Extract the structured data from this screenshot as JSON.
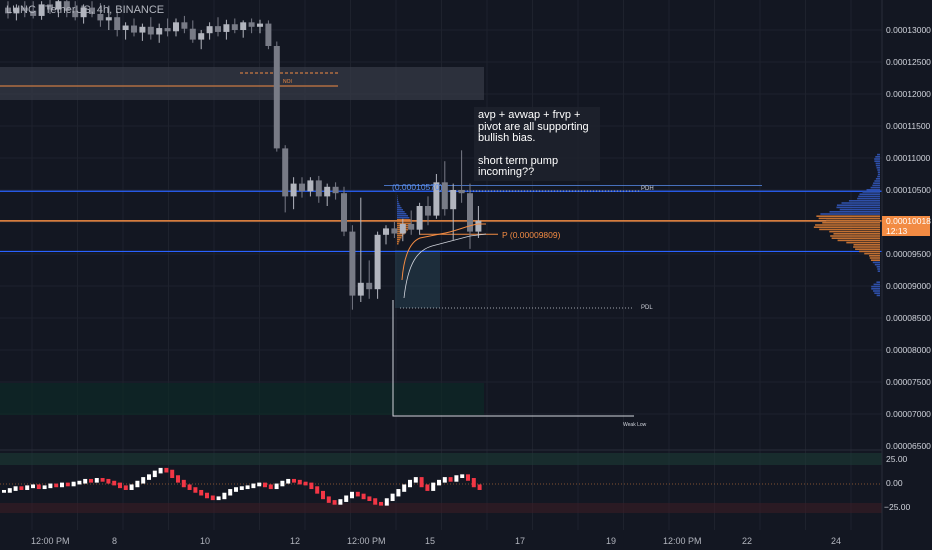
{
  "header": {
    "ticker": "LUNC / TetherUS, 4h, BINANCE"
  },
  "annotation": {
    "line1": "avp + avwap + frvp +",
    "line2": "pivot are all supporting",
    "line3": "bullish bias.",
    "line4": "short term pump",
    "line5": "incoming??"
  },
  "labels": {
    "pdh": "PDH",
    "pdl": "PDL",
    "weak_low": "Weak Low",
    "noi": "NOI",
    "anchor_price": "(0.00010570)",
    "pivot": "P (0.00009809)"
  },
  "price_axis": {
    "ticks": [
      "0.00013000",
      "0.00012500",
      "0.00012000",
      "0.00011500",
      "0.00011000",
      "0.00010500",
      "0.00009500",
      "0.00009000",
      "0.00008500",
      "0.00008000",
      "0.00007500",
      "0.00007000",
      "0.00006500"
    ],
    "current_price": "0.00010018",
    "countdown": "12:13"
  },
  "oscillator_axis": {
    "ticks": [
      "25.00",
      "0.00",
      "−25.00"
    ]
  },
  "time_axis": {
    "ticks": [
      "12:00 PM",
      "8",
      "10",
      "12",
      "12:00 PM",
      "15",
      "17",
      "19",
      "12:00 PM",
      "22",
      "24"
    ]
  },
  "colors": {
    "background": "#131722",
    "bull_candle": "#b2b5be",
    "bear_candle": "#787b86",
    "price_line": "#f28b43",
    "level_line": "#2962ff",
    "osc_up": "#ffffff",
    "osc_down": "#f23645"
  },
  "chart_data": {
    "type": "candlestick",
    "timeframe": "4h",
    "price_scale": {
      "min": 6.5e-05,
      "max": 0.00013
    },
    "current_price": 0.00010018,
    "levels": {
      "pdh": 0.0001048,
      "pdl": 8.68e-05,
      "pivot": 9.809e-05,
      "anchor": 0.0001057,
      "weak_low": 7.02e-05,
      "blue_low": 9.54e-05
    },
    "candles": [
      {
        "o": 0.0001335,
        "h": 0.0001345,
        "l": 0.0001318,
        "c": 0.0001326
      },
      {
        "o": 0.0001326,
        "h": 0.000134,
        "l": 0.0001315,
        "c": 0.0001335
      },
      {
        "o": 0.0001335,
        "h": 0.0001345,
        "l": 0.000132,
        "c": 0.000133
      },
      {
        "o": 0.000133,
        "h": 0.0001345,
        "l": 0.0001318,
        "c": 0.0001322
      },
      {
        "o": 0.0001322,
        "h": 0.0001345,
        "l": 0.0001316,
        "c": 0.000134
      },
      {
        "o": 0.000134,
        "h": 0.000135,
        "l": 0.0001325,
        "c": 0.0001332
      },
      {
        "o": 0.0001332,
        "h": 0.0001352,
        "l": 0.000132,
        "c": 0.0001345
      },
      {
        "o": 0.0001345,
        "h": 0.0001352,
        "l": 0.000132,
        "c": 0.000133
      },
      {
        "o": 0.000133,
        "h": 0.0001345,
        "l": 0.0001315,
        "c": 0.000132
      },
      {
        "o": 0.000132,
        "h": 0.000134,
        "l": 0.000131,
        "c": 0.0001335
      },
      {
        "o": 0.0001335,
        "h": 0.0001345,
        "l": 0.000132,
        "c": 0.0001325
      },
      {
        "o": 0.0001325,
        "h": 0.0001342,
        "l": 0.0001305,
        "c": 0.0001315
      },
      {
        "o": 0.0001315,
        "h": 0.0001338,
        "l": 0.00013,
        "c": 0.000132
      },
      {
        "o": 0.000132,
        "h": 0.000133,
        "l": 0.000129,
        "c": 0.00013
      },
      {
        "o": 0.00013,
        "h": 0.0001312,
        "l": 0.0001285,
        "c": 0.0001307
      },
      {
        "o": 0.0001307,
        "h": 0.0001318,
        "l": 0.000129,
        "c": 0.0001296
      },
      {
        "o": 0.0001296,
        "h": 0.000131,
        "l": 0.0001283,
        "c": 0.0001305
      },
      {
        "o": 0.0001305,
        "h": 0.000132,
        "l": 0.0001285,
        "c": 0.0001293
      },
      {
        "o": 0.0001293,
        "h": 0.000131,
        "l": 0.000128,
        "c": 0.0001303
      },
      {
        "o": 0.0001303,
        "h": 0.0001318,
        "l": 0.000129,
        "c": 0.0001298
      },
      {
        "o": 0.0001298,
        "h": 0.0001318,
        "l": 0.000129,
        "c": 0.0001312
      },
      {
        "o": 0.0001312,
        "h": 0.0001322,
        "l": 0.0001295,
        "c": 0.0001302
      },
      {
        "o": 0.0001302,
        "h": 0.0001315,
        "l": 0.000128,
        "c": 0.0001285
      },
      {
        "o": 0.0001285,
        "h": 0.00013,
        "l": 0.000127,
        "c": 0.0001295
      },
      {
        "o": 0.0001295,
        "h": 0.0001312,
        "l": 0.0001285,
        "c": 0.0001306
      },
      {
        "o": 0.0001306,
        "h": 0.000132,
        "l": 0.000129,
        "c": 0.0001297
      },
      {
        "o": 0.0001297,
        "h": 0.0001316,
        "l": 0.0001285,
        "c": 0.0001309
      },
      {
        "o": 0.0001309,
        "h": 0.0001318,
        "l": 0.0001295,
        "c": 0.00013
      },
      {
        "o": 0.00013,
        "h": 0.0001315,
        "l": 0.0001288,
        "c": 0.0001312
      },
      {
        "o": 0.0001312,
        "h": 0.0001318,
        "l": 0.0001295,
        "c": 0.0001305
      },
      {
        "o": 0.0001305,
        "h": 0.0001316,
        "l": 0.0001295,
        "c": 0.000131
      },
      {
        "o": 0.000131,
        "h": 0.0001315,
        "l": 0.000127,
        "c": 0.0001275
      },
      {
        "o": 0.0001275,
        "h": 0.0001282,
        "l": 0.000111,
        "c": 0.0001115
      },
      {
        "o": 0.0001115,
        "h": 0.000112,
        "l": 0.0001015,
        "c": 0.000104
      },
      {
        "o": 0.000104,
        "h": 0.000107,
        "l": 0.000102,
        "c": 0.000106
      },
      {
        "o": 0.000106,
        "h": 0.000107,
        "l": 0.0001038,
        "c": 0.0001048
      },
      {
        "o": 0.0001048,
        "h": 0.000107,
        "l": 0.000104,
        "c": 0.0001065
      },
      {
        "o": 0.0001065,
        "h": 0.0001072,
        "l": 0.000103,
        "c": 0.000104
      },
      {
        "o": 0.000104,
        "h": 0.000106,
        "l": 0.0001025,
        "c": 0.0001055
      },
      {
        "o": 0.0001055,
        "h": 0.0001062,
        "l": 0.0001035,
        "c": 0.0001045
      },
      {
        "o": 0.0001045,
        "h": 0.0001055,
        "l": 9.78e-05,
        "c": 9.85e-05
      },
      {
        "o": 9.85e-05,
        "h": 9.95e-05,
        "l": 8.63e-05,
        "c": 8.85e-05
      },
      {
        "o": 8.85e-05,
        "h": 0.0001038,
        "l": 8.75e-05,
        "c": 9.05e-05
      },
      {
        "o": 9.05e-05,
        "h": 9.4e-05,
        "l": 8.8e-05,
        "c": 8.95e-05
      },
      {
        "o": 8.95e-05,
        "h": 9.85e-05,
        "l": 8.8e-05,
        "c": 9.8e-05
      },
      {
        "o": 9.8e-05,
        "h": 9.95e-05,
        "l": 9.65e-05,
        "c": 9.9e-05
      },
      {
        "o": 9.9e-05,
        "h": 0.0001,
        "l": 9.75e-05,
        "c": 9.82e-05
      },
      {
        "o": 9.82e-05,
        "h": 0.0001005,
        "l": 9.7e-05,
        "c": 9.97e-05
      },
      {
        "o": 9.97e-05,
        "h": 0.0001018,
        "l": 9.8e-05,
        "c": 9.88e-05
      },
      {
        "o": 9.88e-05,
        "h": 0.000103,
        "l": 9.8e-05,
        "c": 0.0001025
      },
      {
        "o": 0.0001025,
        "h": 0.000104,
        "l": 9.95e-05,
        "c": 0.000101
      },
      {
        "o": 0.000101,
        "h": 0.0001075,
        "l": 0.0001005,
        "c": 0.0001062
      },
      {
        "o": 0.0001062,
        "h": 0.0001095,
        "l": 0.000101,
        "c": 0.000102
      },
      {
        "o": 0.000102,
        "h": 0.000106,
        "l": 9.72e-05,
        "c": 0.000105
      },
      {
        "o": 0.000105,
        "h": 0.0001112,
        "l": 0.000103,
        "c": 0.0001045
      },
      {
        "o": 0.0001045,
        "h": 0.000106,
        "l": 9.58e-05,
        "c": 9.85e-05
      },
      {
        "o": 9.85e-05,
        "h": 0.0001025,
        "l": 9.75e-05,
        "c": 0.0001002
      }
    ],
    "oscillator": {
      "type": "bar",
      "scale": {
        "min": -35,
        "max": 35
      },
      "levels": [
        25,
        0,
        -25
      ],
      "values": [
        -8,
        -6,
        -4,
        -5,
        -3,
        -2,
        -4,
        -3,
        -1,
        -2,
        0,
        -1,
        1,
        2,
        4,
        3,
        5,
        4,
        2,
        0,
        -3,
        -5,
        -2,
        2,
        6,
        9,
        13,
        16,
        14,
        8,
        3,
        -2,
        -5,
        -8,
        -11,
        -14,
        -16,
        -15,
        -11,
        -7,
        -5,
        -4,
        -3,
        -1,
        0,
        -2,
        -4,
        -1,
        2,
        4,
        3,
        1,
        0,
        -4,
        -9,
        -15,
        -19,
        -21,
        -18,
        -14,
        -10,
        -12,
        -15,
        -17,
        -21,
        -22,
        -17,
        -12,
        -7,
        -2,
        3,
        6,
        -2,
        -6,
        0,
        3,
        6,
        4,
        8,
        9,
        5,
        -2,
        -5
      ]
    }
  }
}
